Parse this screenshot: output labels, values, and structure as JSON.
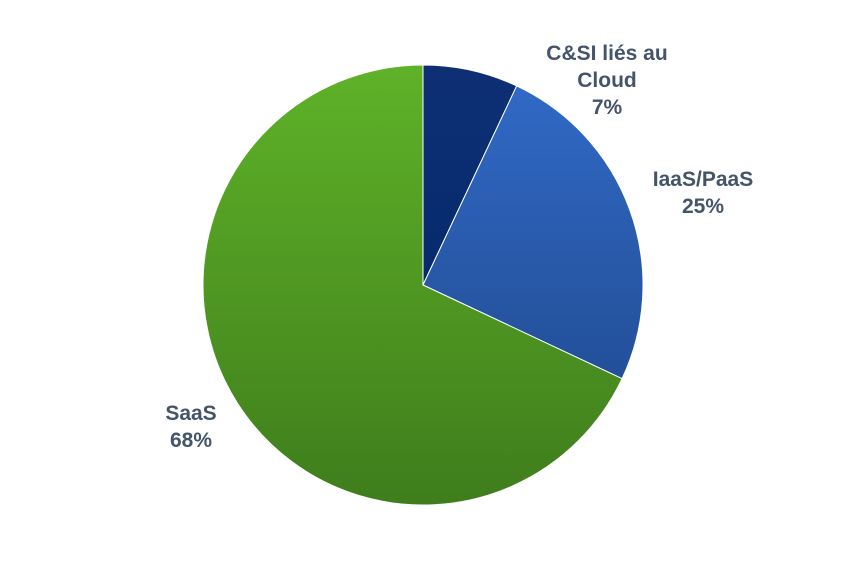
{
  "chart_data": {
    "type": "pie",
    "slices": [
      {
        "label": "C&SI liés au Cloud",
        "value": 7,
        "value_label": "7%",
        "color": "#1f3f80"
      },
      {
        "label": "IaaS/PaaS",
        "value": 25,
        "value_label": "25%",
        "color": "#2e63b8"
      },
      {
        "label": "SaaS",
        "value": 68,
        "value_label": "68%",
        "color": "#4f9a26"
      }
    ],
    "title": "",
    "legend": "none",
    "data_labels": "outside, category name and percent"
  }
}
